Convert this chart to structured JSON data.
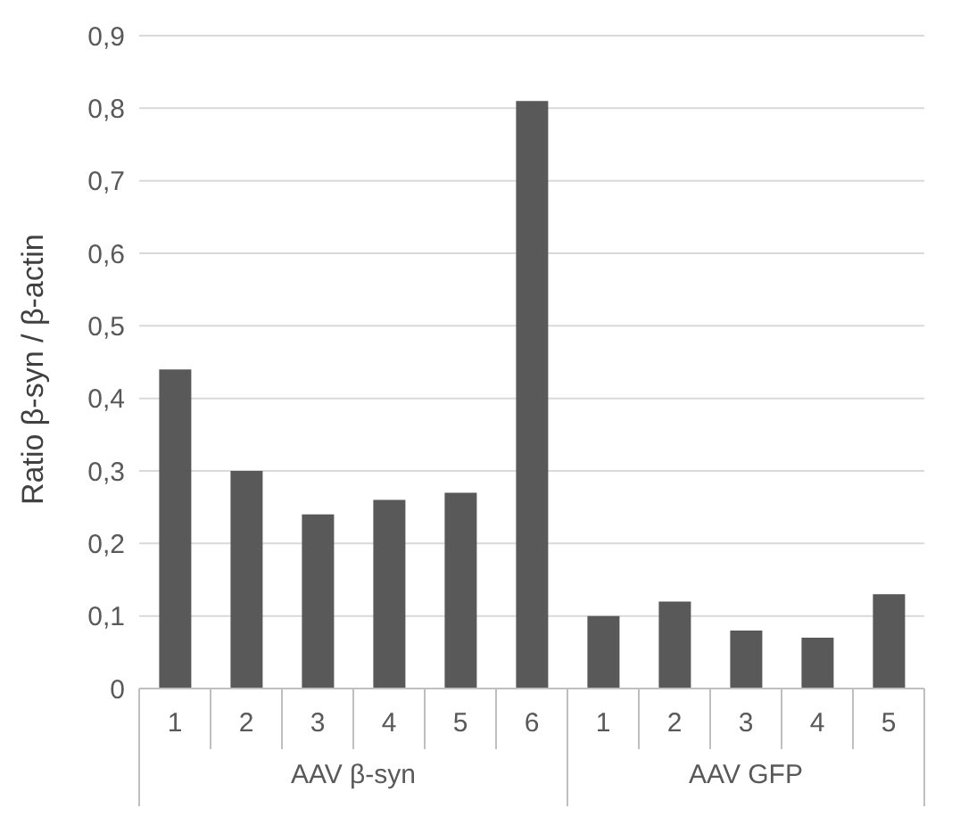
{
  "chart_data": {
    "type": "bar",
    "ylabel": "Ratio β-syn / β-actin",
    "categories": [
      "1",
      "2",
      "3",
      "4",
      "5",
      "6",
      "1",
      "2",
      "3",
      "4",
      "5"
    ],
    "values": [
      0.44,
      0.3,
      0.24,
      0.26,
      0.27,
      0.81,
      0.1,
      0.12,
      0.08,
      0.07,
      0.13
    ],
    "color": "#595959",
    "ylim": [
      0,
      0.9
    ],
    "yticks": [
      0,
      {
        "value": 0.1,
        "label": "0,1"
      },
      {
        "value": 0.2,
        "label": "0,2"
      },
      {
        "value": 0.3,
        "label": "0,3"
      },
      {
        "value": 0.4,
        "label": "0,4"
      },
      {
        "value": 0.5,
        "label": "0,5"
      },
      {
        "value": 0.6,
        "label": "0,6"
      },
      {
        "value": 0.7,
        "label": "0,7"
      },
      {
        "value": 0.8,
        "label": "0,8"
      },
      {
        "value": 0.9,
        "label": "0,9"
      }
    ],
    "grid": "y",
    "annotations": [
      "AAV β-syn",
      "AAV GFP"
    ]
  }
}
